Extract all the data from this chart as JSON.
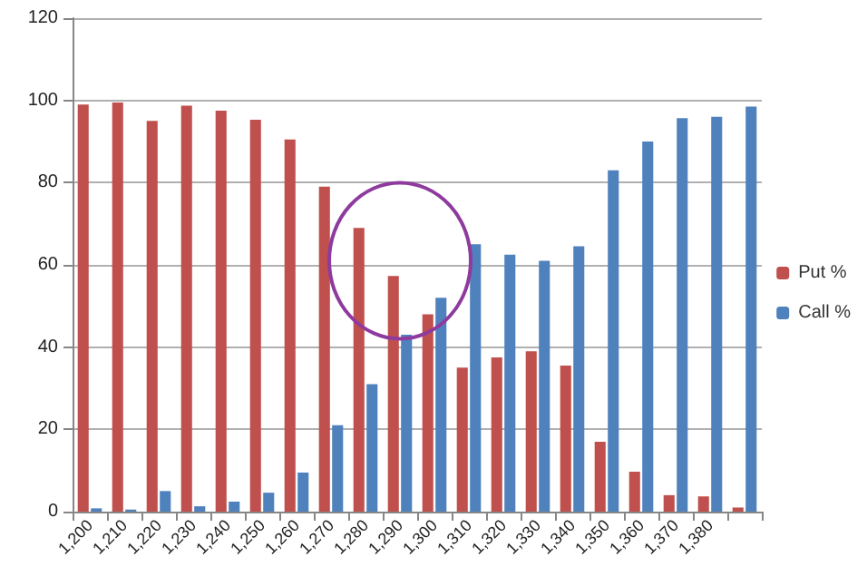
{
  "chart_data": {
    "type": "bar",
    "categories": [
      "1,200",
      "1,210",
      "1,220",
      "1,230",
      "1,240",
      "1,250",
      "1,260",
      "1,270",
      "1,280",
      "1,290",
      "1,300",
      "1,310",
      "1,320",
      "1,330",
      "1,340",
      "1,350",
      "1,360",
      "1,370",
      "1,380",
      null
    ],
    "series": [
      {
        "name": "Put %",
        "color": "#c0504d",
        "values": [
          99,
          99.5,
          95,
          98.7,
          97.5,
          95.3,
          90.5,
          79,
          69,
          57.3,
          48,
          35,
          37.5,
          39,
          35.5,
          17,
          9.7,
          4,
          3.7,
          1
        ]
      },
      {
        "name": "Call %",
        "color": "#4f81bd",
        "values": [
          0.8,
          0.5,
          5,
          1.3,
          2.4,
          4.6,
          9.5,
          21,
          31,
          43,
          52,
          65,
          62.5,
          61,
          64.5,
          83,
          90,
          95.7,
          96,
          98.5
        ]
      }
    ],
    "ylim": [
      0,
      120
    ],
    "yticks": [
      0,
      20,
      40,
      60,
      80,
      100,
      120
    ],
    "grid": "y",
    "legend": "right"
  }
}
